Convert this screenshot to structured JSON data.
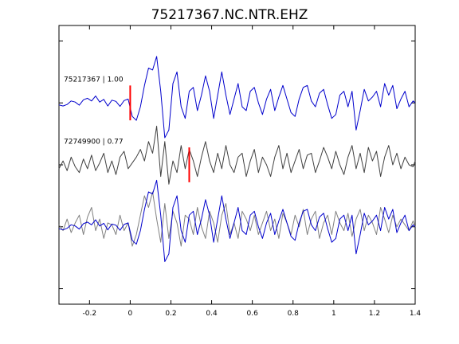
{
  "chart_data": {
    "type": "line",
    "title": "75217367.NC.NTR.EHZ",
    "xlabel": "",
    "ylabel": "",
    "xlim": [
      -0.35,
      1.4
    ],
    "x_ticks": [
      -0.2,
      0,
      0.2,
      0.4,
      0.6,
      0.8,
      1,
      1.2,
      1.4
    ],
    "x_tick_labels": [
      "-0.2",
      "0",
      "0.2",
      "0.4",
      "0.6",
      "0.8",
      "1",
      "1.2",
      "1.4"
    ],
    "ylim": [
      -3.6,
      3.6
    ],
    "y_ticks": [
      -3.2,
      -1.6,
      0,
      1.6,
      3.2
    ],
    "grid": false,
    "legend": "none",
    "colors": {
      "master": "#0000cc",
      "correlated": "#404040",
      "overlay_grey": "#808080",
      "pick": "#ff0000"
    },
    "series": [
      {
        "label": "75217367 | 1.00",
        "offset": 1.6,
        "pick_time": 0.0,
        "color": "#0000cc",
        "x": [
          -0.35,
          -0.33,
          -0.31,
          -0.29,
          -0.27,
          -0.25,
          -0.23,
          -0.21,
          -0.19,
          -0.17,
          -0.15,
          -0.13,
          -0.11,
          -0.09,
          -0.07,
          -0.05,
          -0.03,
          -0.01,
          0.01,
          0.03,
          0.05,
          0.07,
          0.09,
          0.11,
          0.13,
          0.15,
          0.17,
          0.19,
          0.21,
          0.23,
          0.25,
          0.27,
          0.29,
          0.31,
          0.33,
          0.35,
          0.37,
          0.39,
          0.41,
          0.43,
          0.45,
          0.47,
          0.49,
          0.51,
          0.53,
          0.55,
          0.57,
          0.59,
          0.61,
          0.63,
          0.65,
          0.67,
          0.69,
          0.71,
          0.73,
          0.75,
          0.77,
          0.79,
          0.81,
          0.83,
          0.85,
          0.87,
          0.89,
          0.91,
          0.93,
          0.95,
          0.97,
          0.99,
          1.01,
          1.03,
          1.05,
          1.07,
          1.09,
          1.11,
          1.13,
          1.15,
          1.17,
          1.19,
          1.21,
          1.23,
          1.25,
          1.27,
          1.29,
          1.31,
          1.33,
          1.35,
          1.37,
          1.39,
          1.4
        ],
        "y": [
          -0.05,
          -0.08,
          -0.04,
          0.05,
          0.02,
          -0.06,
          0.08,
          0.12,
          0.05,
          0.18,
          0.02,
          0.09,
          -0.08,
          0.07,
          0.04,
          -0.09,
          0.06,
          0.1,
          -0.35,
          -0.45,
          -0.1,
          0.45,
          0.9,
          0.85,
          1.2,
          0.3,
          -0.9,
          -0.7,
          0.5,
          0.8,
          -0.1,
          -0.4,
          0.3,
          0.4,
          -0.2,
          0.2,
          0.7,
          0.3,
          -0.4,
          0.2,
          0.8,
          0.2,
          -0.3,
          0.1,
          0.5,
          -0.1,
          -0.2,
          0.3,
          0.4,
          0.0,
          -0.3,
          0.1,
          0.35,
          -0.2,
          0.15,
          0.45,
          0.1,
          -0.25,
          -0.35,
          0.1,
          0.4,
          0.45,
          0.05,
          -0.1,
          0.25,
          0.35,
          -0.05,
          -0.4,
          -0.3,
          0.2,
          0.3,
          -0.1,
          0.3,
          -0.7,
          -0.2,
          0.35,
          0.05,
          0.15,
          0.3,
          -0.1,
          0.5,
          0.2,
          0.45,
          -0.15,
          0.1,
          0.3,
          -0.1,
          0.05,
          0.0
        ]
      },
      {
        "label": "72749900 | 0.77",
        "offset": 0.0,
        "pick_time": 0.29,
        "color": "#404040",
        "x": [
          -0.35,
          -0.33,
          -0.31,
          -0.29,
          -0.27,
          -0.25,
          -0.23,
          -0.21,
          -0.19,
          -0.17,
          -0.15,
          -0.13,
          -0.11,
          -0.09,
          -0.07,
          -0.05,
          -0.03,
          -0.01,
          0.01,
          0.03,
          0.05,
          0.07,
          0.09,
          0.11,
          0.13,
          0.15,
          0.17,
          0.19,
          0.21,
          0.23,
          0.25,
          0.27,
          0.29,
          0.31,
          0.33,
          0.35,
          0.37,
          0.39,
          0.41,
          0.43,
          0.45,
          0.47,
          0.49,
          0.51,
          0.53,
          0.55,
          0.57,
          0.59,
          0.61,
          0.63,
          0.65,
          0.67,
          0.69,
          0.71,
          0.73,
          0.75,
          0.77,
          0.79,
          0.81,
          0.83,
          0.85,
          0.87,
          0.89,
          0.91,
          0.93,
          0.95,
          0.97,
          0.99,
          1.01,
          1.03,
          1.05,
          1.07,
          1.09,
          1.11,
          1.13,
          1.15,
          1.17,
          1.19,
          1.21,
          1.23,
          1.25,
          1.27,
          1.29,
          1.31,
          1.33,
          1.35,
          1.37,
          1.39,
          1.4
        ],
        "y": [
          -0.1,
          0.1,
          -0.15,
          0.2,
          -0.05,
          -0.2,
          0.15,
          -0.1,
          0.25,
          -0.15,
          0.05,
          0.3,
          -0.2,
          0.1,
          -0.25,
          0.2,
          0.35,
          -0.1,
          0.05,
          0.2,
          0.4,
          0.1,
          0.6,
          0.3,
          1.0,
          -0.3,
          0.6,
          -0.5,
          0.1,
          -0.2,
          0.5,
          -0.1,
          0.4,
          0.1,
          -0.3,
          0.2,
          0.6,
          0.1,
          -0.2,
          0.3,
          -0.1,
          0.5,
          0.0,
          -0.2,
          0.2,
          0.3,
          -0.3,
          0.1,
          0.4,
          -0.2,
          0.2,
          0.0,
          -0.3,
          0.2,
          0.5,
          -0.1,
          0.3,
          -0.2,
          0.1,
          0.4,
          -0.1,
          0.25,
          0.3,
          -0.2,
          0.1,
          0.45,
          0.2,
          -0.1,
          0.35,
          0.0,
          -0.25,
          0.2,
          0.5,
          -0.1,
          0.3,
          -0.2,
          0.45,
          0.1,
          0.35,
          -0.3,
          0.2,
          0.5,
          0.0,
          0.3,
          -0.1,
          0.2,
          0.0,
          -0.05,
          0.1
        ]
      },
      {
        "label": "",
        "offset": -1.6,
        "color": "#0000cc",
        "overlay_of": "75217367 | 1.00",
        "x": [
          -0.35,
          -0.33,
          -0.31,
          -0.29,
          -0.27,
          -0.25,
          -0.23,
          -0.21,
          -0.19,
          -0.17,
          -0.15,
          -0.13,
          -0.11,
          -0.09,
          -0.07,
          -0.05,
          -0.03,
          -0.01,
          0.01,
          0.03,
          0.05,
          0.07,
          0.09,
          0.11,
          0.13,
          0.15,
          0.17,
          0.19,
          0.21,
          0.23,
          0.25,
          0.27,
          0.29,
          0.31,
          0.33,
          0.35,
          0.37,
          0.39,
          0.41,
          0.43,
          0.45,
          0.47,
          0.49,
          0.51,
          0.53,
          0.55,
          0.57,
          0.59,
          0.61,
          0.63,
          0.65,
          0.67,
          0.69,
          0.71,
          0.73,
          0.75,
          0.77,
          0.79,
          0.81,
          0.83,
          0.85,
          0.87,
          0.89,
          0.91,
          0.93,
          0.95,
          0.97,
          0.99,
          1.01,
          1.03,
          1.05,
          1.07,
          1.09,
          1.11,
          1.13,
          1.15,
          1.17,
          1.19,
          1.21,
          1.23,
          1.25,
          1.27,
          1.29,
          1.31,
          1.33,
          1.35,
          1.37,
          1.39,
          1.4
        ],
        "y": [
          -0.05,
          -0.08,
          -0.04,
          0.05,
          0.02,
          -0.06,
          0.08,
          0.12,
          0.05,
          0.18,
          0.02,
          0.09,
          -0.08,
          0.07,
          0.04,
          -0.09,
          0.06,
          0.1,
          -0.35,
          -0.45,
          -0.1,
          0.45,
          0.9,
          0.85,
          1.2,
          0.3,
          -0.9,
          -0.7,
          0.5,
          0.8,
          -0.1,
          -0.4,
          0.3,
          0.4,
          -0.2,
          0.2,
          0.7,
          0.3,
          -0.4,
          0.2,
          0.8,
          0.2,
          -0.3,
          0.1,
          0.5,
          -0.1,
          -0.2,
          0.3,
          0.4,
          0.0,
          -0.3,
          0.1,
          0.35,
          -0.2,
          0.15,
          0.45,
          0.1,
          -0.25,
          -0.35,
          0.1,
          0.4,
          0.45,
          0.05,
          -0.1,
          0.25,
          0.35,
          -0.05,
          -0.4,
          -0.3,
          0.2,
          0.3,
          -0.1,
          0.3,
          -0.7,
          -0.2,
          0.35,
          0.05,
          0.15,
          0.3,
          -0.1,
          0.5,
          0.2,
          0.45,
          -0.15,
          0.1,
          0.3,
          -0.1,
          0.05,
          0.0
        ]
      },
      {
        "label": "",
        "offset": -1.6,
        "color": "#808080",
        "overlay_of": "72749900 | 0.77",
        "x": [
          -0.35,
          -0.33,
          -0.31,
          -0.29,
          -0.27,
          -0.25,
          -0.23,
          -0.21,
          -0.19,
          -0.17,
          -0.15,
          -0.13,
          -0.11,
          -0.09,
          -0.07,
          -0.05,
          -0.03,
          -0.01,
          0.01,
          0.03,
          0.05,
          0.07,
          0.09,
          0.11,
          0.13,
          0.15,
          0.17,
          0.19,
          0.21,
          0.23,
          0.25,
          0.27,
          0.29,
          0.31,
          0.33,
          0.35,
          0.37,
          0.39,
          0.41,
          0.43,
          0.45,
          0.47,
          0.49,
          0.51,
          0.53,
          0.55,
          0.57,
          0.59,
          0.61,
          0.63,
          0.65,
          0.67,
          0.69,
          0.71,
          0.73,
          0.75,
          0.77,
          0.79,
          0.81,
          0.83,
          0.85,
          0.87,
          0.89,
          0.91,
          0.93,
          0.95,
          0.97,
          0.99,
          1.01,
          1.03,
          1.05,
          1.07,
          1.09,
          1.11,
          1.13,
          1.15,
          1.17,
          1.19,
          1.21,
          1.23,
          1.25,
          1.27,
          1.29,
          1.31,
          1.33,
          1.35,
          1.37,
          1.39,
          1.4
        ],
        "y": [
          0.05,
          -0.1,
          0.2,
          -0.15,
          0.1,
          0.3,
          -0.2,
          0.25,
          0.5,
          -0.1,
          0.2,
          -0.3,
          0.1,
          0.05,
          -0.2,
          0.3,
          -0.1,
          0.1,
          -0.5,
          -0.2,
          0.3,
          0.8,
          0.5,
          0.9,
          0.2,
          -0.4,
          0.6,
          -0.3,
          0.4,
          0.1,
          -0.5,
          0.3,
          0.2,
          -0.2,
          0.5,
          0.0,
          -0.3,
          0.4,
          0.1,
          -0.4,
          0.3,
          0.6,
          -0.2,
          0.1,
          -0.3,
          0.4,
          0.2,
          -0.1,
          0.3,
          -0.2,
          0.1,
          0.4,
          -0.1,
          0.2,
          -0.3,
          0.35,
          0.1,
          -0.2,
          0.3,
          0.0,
          0.45,
          -0.2,
          0.2,
          0.4,
          -0.3,
          0.1,
          0.3,
          -0.2,
          0.4,
          0.1,
          -0.1,
          0.35,
          -0.25,
          0.2,
          0.45,
          -0.1,
          0.3,
          0.1,
          -0.2,
          0.5,
          0.2,
          -0.15,
          0.3,
          0.0,
          0.2,
          0.05,
          -0.1,
          0.15,
          0.0
        ]
      }
    ]
  }
}
